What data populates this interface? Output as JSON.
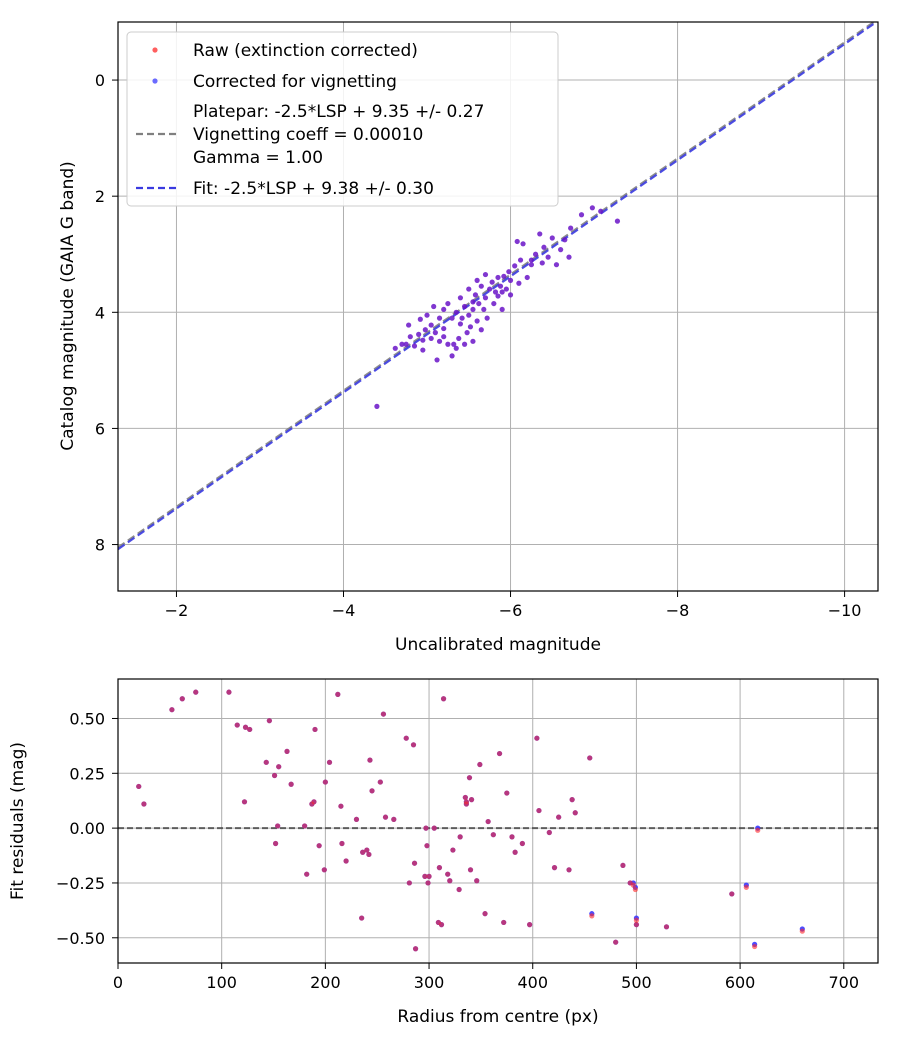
{
  "chart_data": [
    {
      "type": "scatter",
      "xlabel": "Uncalibrated magnitude",
      "ylabel": "Catalog magnitude (GAIA G band)",
      "xlim": [
        -1.3,
        -10.4
      ],
      "ylim": [
        8.8,
        -1.0
      ],
      "x_inverted": true,
      "y_inverted": true,
      "xticks": [
        -2,
        -4,
        -6,
        -8,
        -10
      ],
      "yticks": [
        0,
        2,
        4,
        6,
        8
      ],
      "xtick_labels": [
        "−2",
        "−4",
        "−6",
        "−8",
        "−10"
      ],
      "ytick_labels": [
        "0",
        "2",
        "4",
        "6",
        "8"
      ],
      "grid": true,
      "legend_position": "top-left",
      "legend": [
        {
          "label": "Raw (extinction corrected)",
          "kind": "marker",
          "color": "#ff2a2a"
        },
        {
          "label": "Corrected for vignetting",
          "kind": "marker",
          "color": "#3a3aff"
        },
        {
          "label": "Platepar: -2.5*LSP + 9.35 +/- 0.27\nVignetting coeff = 0.00010\nGamma = 1.00",
          "kind": "line",
          "color": "#808080"
        },
        {
          "label": "Fit: -2.5*LSP + 9.38 +/- 0.30",
          "kind": "line",
          "color": "#3a3ae0"
        }
      ],
      "lines": [
        {
          "name": "Platepar",
          "slope": -2.5,
          "intercept": 9.35,
          "color": "#808080"
        },
        {
          "name": "Fit",
          "slope": -2.5,
          "intercept": 9.38,
          "color": "#3a3ae0"
        }
      ],
      "point_color": "#6a14c8",
      "points": [
        [
          -4.4,
          5.62
        ],
        [
          -4.62,
          4.62
        ],
        [
          -4.7,
          4.55
        ],
        [
          -4.75,
          4.55
        ],
        [
          -4.8,
          4.42
        ],
        [
          -4.78,
          4.22
        ],
        [
          -4.85,
          4.58
        ],
        [
          -4.9,
          4.38
        ],
        [
          -4.92,
          4.12
        ],
        [
          -4.95,
          4.65
        ],
        [
          -4.98,
          4.3
        ],
        [
          -5.0,
          4.05
        ],
        [
          -5.05,
          4.22
        ],
        [
          -5.05,
          4.45
        ],
        [
          -5.08,
          3.9
        ],
        [
          -5.1,
          4.35
        ],
        [
          -5.12,
          4.82
        ],
        [
          -5.15,
          4.5
        ],
        [
          -5.15,
          4.1
        ],
        [
          -5.2,
          3.95
        ],
        [
          -5.2,
          4.28
        ],
        [
          -5.25,
          4.55
        ],
        [
          -5.25,
          3.85
        ],
        [
          -5.3,
          4.75
        ],
        [
          -5.3,
          4.1
        ],
        [
          -5.32,
          4.55
        ],
        [
          -5.35,
          4.62
        ],
        [
          -5.35,
          4.0
        ],
        [
          -5.38,
          4.45
        ],
        [
          -5.4,
          4.2
        ],
        [
          -5.4,
          3.75
        ],
        [
          -5.42,
          4.1
        ],
        [
          -5.45,
          4.55
        ],
        [
          -5.45,
          3.9
        ],
        [
          -5.48,
          4.35
        ],
        [
          -5.5,
          4.05
        ],
        [
          -5.5,
          3.6
        ],
        [
          -5.52,
          4.25
        ],
        [
          -5.55,
          3.95
        ],
        [
          -5.55,
          4.5
        ],
        [
          -5.58,
          3.7
        ],
        [
          -5.6,
          4.15
        ],
        [
          -5.6,
          3.45
        ],
        [
          -5.62,
          3.85
        ],
        [
          -5.65,
          4.3
        ],
        [
          -5.65,
          3.55
        ],
        [
          -5.68,
          3.95
        ],
        [
          -5.7,
          3.35
        ],
        [
          -5.7,
          3.75
        ],
        [
          -5.72,
          4.1
        ],
        [
          -5.75,
          3.6
        ],
        [
          -5.78,
          3.48
        ],
        [
          -5.8,
          3.85
        ],
        [
          -5.82,
          3.65
        ],
        [
          -5.85,
          3.4
        ],
        [
          -5.85,
          3.72
        ],
        [
          -5.88,
          3.55
        ],
        [
          -5.9,
          3.95
        ],
        [
          -5.92,
          3.38
        ],
        [
          -5.95,
          3.6
        ],
        [
          -5.98,
          3.3
        ],
        [
          -6.0,
          3.7
        ],
        [
          -6.0,
          3.45
        ],
        [
          -6.05,
          3.2
        ],
        [
          -6.08,
          2.78
        ],
        [
          -6.1,
          3.5
        ],
        [
          -6.12,
          3.1
        ],
        [
          -6.15,
          2.82
        ],
        [
          -6.2,
          3.4
        ],
        [
          -6.25,
          3.1
        ],
        [
          -6.3,
          3.0
        ],
        [
          -6.35,
          2.65
        ],
        [
          -6.38,
          3.15
        ],
        [
          -6.4,
          2.88
        ],
        [
          -6.45,
          3.05
        ],
        [
          -6.5,
          2.72
        ],
        [
          -6.55,
          3.18
        ],
        [
          -6.6,
          2.92
        ],
        [
          -6.65,
          2.75
        ],
        [
          -6.7,
          3.05
        ],
        [
          -6.72,
          2.55
        ],
        [
          -6.85,
          2.32
        ],
        [
          -6.98,
          2.2
        ],
        [
          -7.08,
          2.26
        ],
        [
          -7.28,
          2.43
        ],
        [
          -6.25,
          3.18
        ],
        [
          -5.9,
          3.65
        ],
        [
          -5.55,
          3.82
        ],
        [
          -5.2,
          4.42
        ],
        [
          -4.95,
          4.48
        ]
      ]
    },
    {
      "type": "scatter",
      "xlabel": "Radius from centre (px)",
      "ylabel": "Fit residuals (mag)",
      "xlim": [
        0,
        733
      ],
      "ylim": [
        -0.615,
        0.68
      ],
      "xticks": [
        0,
        100,
        200,
        300,
        400,
        500,
        600,
        700
      ],
      "yticks": [
        -0.5,
        -0.25,
        0.0,
        0.25,
        0.5
      ],
      "xtick_labels": [
        "0",
        "100",
        "200",
        "300",
        "400",
        "500",
        "600",
        "700"
      ],
      "ytick_labels": [
        "−0.50",
        "−0.25",
        "0.00",
        "0.25",
        "0.50"
      ],
      "grid": true,
      "reference_line": 0.0,
      "series": [
        {
          "name": "Corrected for vignetting",
          "color": "#3a3aff"
        },
        {
          "name": "Raw (extinction corrected)",
          "color": "#ff2a2a"
        }
      ],
      "points": [
        [
          20,
          0.19,
          0.19
        ],
        [
          25,
          0.11,
          0.11
        ],
        [
          52,
          0.54,
          0.54
        ],
        [
          62,
          0.59,
          0.59
        ],
        [
          75,
          0.62,
          0.62
        ],
        [
          107,
          0.62,
          0.62
        ],
        [
          115,
          0.47,
          0.47
        ],
        [
          122,
          0.12,
          0.12
        ],
        [
          123,
          0.46,
          0.46
        ],
        [
          127,
          0.45,
          0.45
        ],
        [
          143,
          0.3,
          0.3
        ],
        [
          146,
          0.49,
          0.49
        ],
        [
          151,
          0.24,
          0.24
        ],
        [
          152,
          -0.07,
          -0.07
        ],
        [
          154,
          0.01,
          0.01
        ],
        [
          155,
          0.28,
          0.28
        ],
        [
          163,
          0.35,
          0.35
        ],
        [
          167,
          0.2,
          0.2
        ],
        [
          180,
          0.01,
          0.01
        ],
        [
          182,
          -0.21,
          -0.21
        ],
        [
          187,
          0.11,
          0.11
        ],
        [
          189,
          0.12,
          0.12
        ],
        [
          190,
          0.45,
          0.45
        ],
        [
          194,
          -0.08,
          -0.08
        ],
        [
          199,
          -0.19,
          -0.19
        ],
        [
          200,
          0.21,
          0.21
        ],
        [
          204,
          0.3,
          0.3
        ],
        [
          212,
          0.61,
          0.61
        ],
        [
          215,
          0.1,
          0.1
        ],
        [
          216,
          -0.07,
          -0.07
        ],
        [
          220,
          -0.15,
          -0.15
        ],
        [
          230,
          0.04,
          0.04
        ],
        [
          235,
          -0.41,
          -0.41
        ],
        [
          236,
          -0.11,
          -0.11
        ],
        [
          240,
          -0.1,
          -0.1
        ],
        [
          242,
          -0.12,
          -0.12
        ],
        [
          243,
          0.31,
          0.31
        ],
        [
          245,
          0.17,
          0.17
        ],
        [
          253,
          0.21,
          0.21
        ],
        [
          256,
          0.52,
          0.52
        ],
        [
          258,
          0.05,
          0.05
        ],
        [
          266,
          0.04,
          0.04
        ],
        [
          278,
          0.41,
          0.41
        ],
        [
          281,
          -0.25,
          -0.25
        ],
        [
          285,
          0.38,
          0.38
        ],
        [
          286,
          -0.16,
          -0.16
        ],
        [
          287,
          -0.55,
          -0.55
        ],
        [
          296,
          -0.22,
          -0.22
        ],
        [
          297,
          0.0,
          0.0
        ],
        [
          298,
          -0.08,
          -0.08
        ],
        [
          299,
          -0.25,
          -0.25
        ],
        [
          300,
          -0.22,
          -0.22
        ],
        [
          305,
          0.0,
          0.0
        ],
        [
          309,
          -0.43,
          -0.43
        ],
        [
          310,
          -0.18,
          -0.18
        ],
        [
          312,
          -0.44,
          -0.44
        ],
        [
          314,
          0.59,
          0.59
        ],
        [
          318,
          -0.21,
          -0.21
        ],
        [
          320,
          -0.24,
          -0.24
        ],
        [
          323,
          -0.1,
          -0.1
        ],
        [
          329,
          -0.28,
          -0.28
        ],
        [
          330,
          -0.04,
          -0.04
        ],
        [
          335,
          0.14,
          0.14
        ],
        [
          336,
          0.11,
          0.11
        ],
        [
          336,
          0.12,
          0.12
        ],
        [
          339,
          0.23,
          0.23
        ],
        [
          340,
          -0.19,
          -0.19
        ],
        [
          341,
          0.13,
          0.13
        ],
        [
          346,
          -0.24,
          -0.24
        ],
        [
          349,
          0.29,
          0.29
        ],
        [
          354,
          -0.39,
          -0.39
        ],
        [
          357,
          0.03,
          0.03
        ],
        [
          362,
          -0.03,
          -0.03
        ],
        [
          368,
          0.34,
          0.34
        ],
        [
          372,
          -0.43,
          -0.43
        ],
        [
          375,
          0.16,
          0.16
        ],
        [
          380,
          -0.04,
          -0.04
        ],
        [
          383,
          -0.11,
          -0.11
        ],
        [
          390,
          -0.07,
          -0.07
        ],
        [
          397,
          -0.44,
          -0.44
        ],
        [
          404,
          0.41,
          0.41
        ],
        [
          406,
          0.08,
          0.08
        ],
        [
          416,
          -0.02,
          -0.02
        ],
        [
          421,
          -0.18,
          -0.18
        ],
        [
          425,
          0.05,
          0.05
        ],
        [
          435,
          -0.19,
          -0.19
        ],
        [
          438,
          0.13,
          0.13
        ],
        [
          441,
          0.07,
          0.07
        ],
        [
          455,
          0.32,
          0.32
        ],
        [
          457,
          -0.39,
          -0.4
        ],
        [
          480,
          -0.52,
          -0.52
        ],
        [
          487,
          -0.17,
          -0.17
        ],
        [
          494,
          -0.25,
          -0.25
        ],
        [
          497,
          -0.25,
          -0.26
        ],
        [
          499,
          -0.27,
          -0.28
        ],
        [
          500,
          -0.41,
          -0.42
        ],
        [
          500,
          -0.44,
          -0.44
        ],
        [
          529,
          -0.45,
          -0.45
        ],
        [
          592,
          -0.3,
          -0.3
        ],
        [
          606,
          -0.26,
          -0.27
        ],
        [
          614,
          -0.53,
          -0.54
        ],
        [
          617,
          0.0,
          -0.01
        ],
        [
          660,
          -0.46,
          -0.47
        ]
      ]
    }
  ]
}
